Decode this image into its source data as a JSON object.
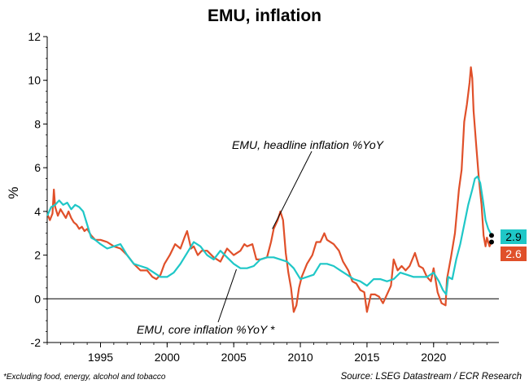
{
  "chart_data": {
    "type": "line",
    "title": "EMU, inflation",
    "ylabel": "%",
    "xlim": [
      1991,
      2024.9
    ],
    "ylim": [
      -2,
      12
    ],
    "x_ticks": [
      1995,
      2000,
      2005,
      2010,
      2015,
      2020
    ],
    "y_ticks": [
      -2,
      0,
      2,
      4,
      6,
      8,
      10,
      12
    ],
    "zero_line": true,
    "grid": false,
    "series": [
      {
        "name": "EMU, headline inflation %YoY",
        "color": "#e0502a",
        "points": [
          [
            1991.0,
            3.9
          ],
          [
            1991.2,
            3.6
          ],
          [
            1991.4,
            3.9
          ],
          [
            1991.5,
            5.0
          ],
          [
            1991.6,
            4.2
          ],
          [
            1991.8,
            3.8
          ],
          [
            1992.0,
            4.1
          ],
          [
            1992.2,
            3.9
          ],
          [
            1992.4,
            3.7
          ],
          [
            1992.6,
            4.0
          ],
          [
            1992.8,
            3.7
          ],
          [
            1993.0,
            3.5
          ],
          [
            1993.2,
            3.4
          ],
          [
            1993.4,
            3.2
          ],
          [
            1993.6,
            3.3
          ],
          [
            1993.8,
            3.1
          ],
          [
            1994.0,
            3.2
          ],
          [
            1994.3,
            2.9
          ],
          [
            1994.6,
            2.7
          ],
          [
            1995.0,
            2.7
          ],
          [
            1995.5,
            2.6
          ],
          [
            1996.0,
            2.4
          ],
          [
            1996.5,
            2.3
          ],
          [
            1997.0,
            2.0
          ],
          [
            1997.5,
            1.6
          ],
          [
            1998.0,
            1.3
          ],
          [
            1998.5,
            1.3
          ],
          [
            1998.9,
            1.0
          ],
          [
            1999.2,
            0.9
          ],
          [
            1999.5,
            1.1
          ],
          [
            1999.8,
            1.6
          ],
          [
            2000.2,
            2.0
          ],
          [
            2000.6,
            2.5
          ],
          [
            2001.0,
            2.3
          ],
          [
            2001.3,
            2.8
          ],
          [
            2001.5,
            3.1
          ],
          [
            2001.8,
            2.3
          ],
          [
            2002.0,
            2.4
          ],
          [
            2002.3,
            2.0
          ],
          [
            2002.6,
            2.2
          ],
          [
            2003.0,
            2.2
          ],
          [
            2003.5,
            1.9
          ],
          [
            2004.0,
            1.7
          ],
          [
            2004.5,
            2.3
          ],
          [
            2005.0,
            2.0
          ],
          [
            2005.5,
            2.2
          ],
          [
            2005.8,
            2.5
          ],
          [
            2006.0,
            2.4
          ],
          [
            2006.4,
            2.5
          ],
          [
            2006.7,
            1.8
          ],
          [
            2007.0,
            1.8
          ],
          [
            2007.5,
            1.9
          ],
          [
            2007.8,
            2.6
          ],
          [
            2008.0,
            3.2
          ],
          [
            2008.3,
            3.6
          ],
          [
            2008.5,
            4.0
          ],
          [
            2008.7,
            3.6
          ],
          [
            2008.9,
            2.1
          ],
          [
            2009.1,
            1.2
          ],
          [
            2009.3,
            0.5
          ],
          [
            2009.5,
            -0.6
          ],
          [
            2009.7,
            -0.3
          ],
          [
            2009.9,
            0.5
          ],
          [
            2010.1,
            1.0
          ],
          [
            2010.5,
            1.6
          ],
          [
            2010.9,
            2.0
          ],
          [
            2011.2,
            2.6
          ],
          [
            2011.5,
            2.6
          ],
          [
            2011.8,
            3.0
          ],
          [
            2012.0,
            2.7
          ],
          [
            2012.5,
            2.5
          ],
          [
            2012.9,
            2.2
          ],
          [
            2013.2,
            1.7
          ],
          [
            2013.6,
            1.3
          ],
          [
            2013.9,
            0.8
          ],
          [
            2014.2,
            0.7
          ],
          [
            2014.5,
            0.4
          ],
          [
            2014.8,
            0.3
          ],
          [
            2015.0,
            -0.6
          ],
          [
            2015.3,
            0.2
          ],
          [
            2015.6,
            0.2
          ],
          [
            2015.9,
            0.1
          ],
          [
            2016.2,
            -0.2
          ],
          [
            2016.5,
            0.2
          ],
          [
            2016.8,
            0.6
          ],
          [
            2017.0,
            1.8
          ],
          [
            2017.3,
            1.3
          ],
          [
            2017.6,
            1.5
          ],
          [
            2017.9,
            1.3
          ],
          [
            2018.2,
            1.5
          ],
          [
            2018.6,
            2.1
          ],
          [
            2018.9,
            1.5
          ],
          [
            2019.2,
            1.4
          ],
          [
            2019.5,
            1.0
          ],
          [
            2019.8,
            0.8
          ],
          [
            2020.0,
            1.4
          ],
          [
            2020.3,
            0.3
          ],
          [
            2020.6,
            -0.2
          ],
          [
            2020.9,
            -0.3
          ],
          [
            2021.0,
            0.9
          ],
          [
            2021.3,
            1.9
          ],
          [
            2021.6,
            3.0
          ],
          [
            2021.9,
            5.0
          ],
          [
            2022.1,
            5.9
          ],
          [
            2022.3,
            8.1
          ],
          [
            2022.5,
            8.9
          ],
          [
            2022.7,
            9.9
          ],
          [
            2022.8,
            10.6
          ],
          [
            2022.9,
            10.1
          ],
          [
            2023.0,
            8.6
          ],
          [
            2023.2,
            7.0
          ],
          [
            2023.4,
            5.5
          ],
          [
            2023.6,
            4.3
          ],
          [
            2023.75,
            2.9
          ],
          [
            2023.9,
            2.4
          ],
          [
            2024.0,
            2.8
          ],
          [
            2024.2,
            2.4
          ],
          [
            2024.35,
            2.6
          ]
        ]
      },
      {
        "name": "EMU, core inflation %YoY *",
        "color": "#1fc7c7",
        "points": [
          [
            1991.0,
            3.8
          ],
          [
            1991.3,
            4.2
          ],
          [
            1991.6,
            4.3
          ],
          [
            1991.9,
            4.5
          ],
          [
            1992.2,
            4.3
          ],
          [
            1992.5,
            4.4
          ],
          [
            1992.8,
            4.1
          ],
          [
            1993.1,
            4.3
          ],
          [
            1993.4,
            4.2
          ],
          [
            1993.7,
            4.0
          ],
          [
            1994.0,
            3.4
          ],
          [
            1994.3,
            2.8
          ],
          [
            1994.6,
            2.7
          ],
          [
            1995.0,
            2.5
          ],
          [
            1995.5,
            2.3
          ],
          [
            1996.0,
            2.4
          ],
          [
            1996.5,
            2.5
          ],
          [
            1997.0,
            2.0
          ],
          [
            1997.5,
            1.6
          ],
          [
            1998.0,
            1.5
          ],
          [
            1998.5,
            1.4
          ],
          [
            1999.0,
            1.2
          ],
          [
            1999.5,
            1.0
          ],
          [
            2000.0,
            1.0
          ],
          [
            2000.5,
            1.2
          ],
          [
            2001.0,
            1.6
          ],
          [
            2001.5,
            2.1
          ],
          [
            2002.0,
            2.6
          ],
          [
            2002.5,
            2.4
          ],
          [
            2003.0,
            2.0
          ],
          [
            2003.5,
            1.8
          ],
          [
            2004.0,
            2.2
          ],
          [
            2004.5,
            1.9
          ],
          [
            2005.0,
            1.6
          ],
          [
            2005.5,
            1.4
          ],
          [
            2006.0,
            1.4
          ],
          [
            2006.5,
            1.5
          ],
          [
            2007.0,
            1.8
          ],
          [
            2007.5,
            1.9
          ],
          [
            2008.0,
            1.9
          ],
          [
            2008.5,
            1.8
          ],
          [
            2009.0,
            1.7
          ],
          [
            2009.5,
            1.4
          ],
          [
            2010.0,
            0.9
          ],
          [
            2010.5,
            1.0
          ],
          [
            2011.0,
            1.1
          ],
          [
            2011.5,
            1.6
          ],
          [
            2012.0,
            1.6
          ],
          [
            2012.5,
            1.5
          ],
          [
            2013.0,
            1.3
          ],
          [
            2013.5,
            1.1
          ],
          [
            2014.0,
            0.9
          ],
          [
            2014.5,
            0.8
          ],
          [
            2015.0,
            0.6
          ],
          [
            2015.5,
            0.9
          ],
          [
            2016.0,
            0.9
          ],
          [
            2016.5,
            0.8
          ],
          [
            2017.0,
            0.9
          ],
          [
            2017.5,
            1.2
          ],
          [
            2018.0,
            1.1
          ],
          [
            2018.5,
            1.0
          ],
          [
            2019.0,
            1.0
          ],
          [
            2019.5,
            1.0
          ],
          [
            2020.0,
            1.2
          ],
          [
            2020.4,
            0.8
          ],
          [
            2020.7,
            0.4
          ],
          [
            2020.95,
            0.2
          ],
          [
            2021.1,
            1.0
          ],
          [
            2021.4,
            0.9
          ],
          [
            2021.7,
            1.8
          ],
          [
            2022.0,
            2.5
          ],
          [
            2022.3,
            3.4
          ],
          [
            2022.6,
            4.3
          ],
          [
            2022.9,
            5.0
          ],
          [
            2023.1,
            5.5
          ],
          [
            2023.3,
            5.6
          ],
          [
            2023.5,
            5.3
          ],
          [
            2023.7,
            4.5
          ],
          [
            2023.9,
            3.6
          ],
          [
            2024.1,
            3.2
          ],
          [
            2024.35,
            2.9
          ]
        ]
      }
    ],
    "end_labels": [
      {
        "value": 2.9,
        "label": "2.9",
        "color": "#1fc7c7"
      },
      {
        "value": 2.6,
        "label": "2.6",
        "color": "#e0502a"
      }
    ],
    "annotations": [
      {
        "text": "EMU, headline inflation %YoY",
        "x": 2007.9,
        "y": 3.2
      },
      {
        "text": "EMU, core inflation %YoY *",
        "x": 2005.2,
        "y": 1.35
      }
    ],
    "footnote": "*Excluding food, energy, alcohol and tobacco",
    "source": "Source: LSEG Datastream / ECR Research"
  }
}
